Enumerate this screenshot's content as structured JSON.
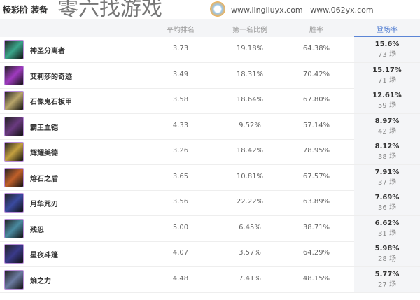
{
  "title": "棱彩阶 装备",
  "headers": {
    "avg": "平均排名",
    "first": "第一名比例",
    "win": "胜率",
    "pick": "登场率"
  },
  "rows": [
    {
      "name": "神圣分离者",
      "avg": "3.73",
      "first": "19.18%",
      "win": "64.38%",
      "pick": "15.6%",
      "games": "73 场",
      "color": "#3aa58a"
    },
    {
      "name": "艾莉莎的奇迹",
      "avg": "3.49",
      "first": "18.31%",
      "win": "70.42%",
      "pick": "15.17%",
      "games": "71 场",
      "color": "#a03ac0"
    },
    {
      "name": "石像鬼石板甲",
      "avg": "3.58",
      "first": "18.64%",
      "win": "67.80%",
      "pick": "12.61%",
      "games": "59 场",
      "color": "#b8a56a"
    },
    {
      "name": "霸王血铠",
      "avg": "4.33",
      "first": "9.52%",
      "win": "57.14%",
      "pick": "8.97%",
      "games": "42 场",
      "color": "#6a3a80"
    },
    {
      "name": "辉耀美德",
      "avg": "3.26",
      "first": "18.42%",
      "win": "78.95%",
      "pick": "8.12%",
      "games": "38 场",
      "color": "#c4a040"
    },
    {
      "name": "熔石之盾",
      "avg": "3.65",
      "first": "10.81%",
      "win": "67.57%",
      "pick": "7.91%",
      "games": "37 场",
      "color": "#c0602a"
    },
    {
      "name": "月华咒刃",
      "avg": "3.56",
      "first": "22.22%",
      "win": "63.89%",
      "pick": "7.69%",
      "games": "36 场",
      "color": "#3a4aa0"
    },
    {
      "name": "残忍",
      "avg": "5.00",
      "first": "6.45%",
      "win": "38.71%",
      "pick": "6.62%",
      "games": "31 场",
      "color": "#4a8aa0"
    },
    {
      "name": "星夜斗篷",
      "avg": "4.07",
      "first": "3.57%",
      "win": "64.29%",
      "pick": "5.98%",
      "games": "28 场",
      "color": "#3a3a8a"
    },
    {
      "name": "熵之力",
      "avg": "4.48",
      "first": "7.41%",
      "win": "48.15%",
      "pick": "5.77%",
      "games": "27 场",
      "color": "#6a7aa0"
    }
  ],
  "watermark": {
    "text": "零六找游戏",
    "url1": "www.lingliuyx.com",
    "url2": "www.062yx.com"
  }
}
